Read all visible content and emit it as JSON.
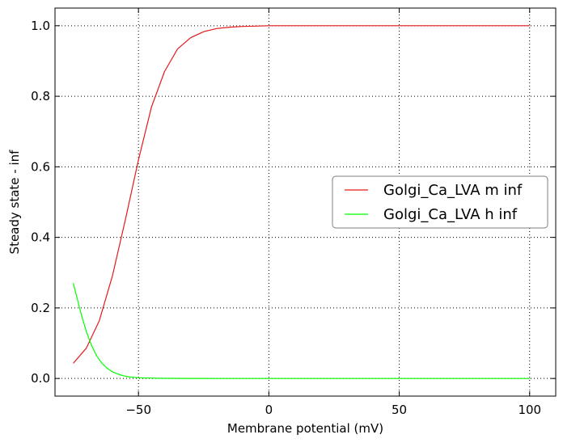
{
  "chart_data": {
    "type": "line",
    "title": "",
    "xlabel": "Membrane potential (mV)",
    "ylabel": "Steady state - inf",
    "xlim": [
      -82,
      110
    ],
    "ylim": [
      -0.05,
      1.05
    ],
    "xticks": [
      -50,
      0,
      50,
      100
    ],
    "xtick_labels": [
      "−50",
      "0",
      "50",
      "100"
    ],
    "yticks": [
      0.0,
      0.2,
      0.4,
      0.6,
      0.8,
      1.0
    ],
    "ytick_labels": [
      "0.0",
      "0.2",
      "0.4",
      "0.6",
      "0.8",
      "1.0"
    ],
    "grid": true,
    "legend_position": "center-right",
    "series": [
      {
        "name": "Golgi_Ca_LVA m inf",
        "color": "#e31a1c",
        "x": [
          -75,
          -70,
          -65,
          -60,
          -55,
          -50,
          -45,
          -40,
          -35,
          -30,
          -25,
          -20,
          -15,
          -10,
          -5,
          0,
          10,
          20,
          40,
          60,
          80,
          100
        ],
        "y": [
          0.043,
          0.086,
          0.164,
          0.29,
          0.45,
          0.62,
          0.77,
          0.87,
          0.934,
          0.966,
          0.983,
          0.992,
          0.996,
          0.998,
          0.999,
          1.0,
          1.0,
          1.0,
          1.0,
          1.0,
          1.0,
          1.0
        ]
      },
      {
        "name": "Golgi_Ca_LVA h inf",
        "color": "#00ff00",
        "x": [
          -75,
          -72,
          -70,
          -68,
          -66,
          -64,
          -62,
          -60,
          -58,
          -56,
          -54,
          -52,
          -50,
          -45,
          -40,
          -30,
          -20,
          0,
          50,
          100
        ],
        "y": [
          0.27,
          0.184,
          0.133,
          0.094,
          0.064,
          0.043,
          0.029,
          0.019,
          0.013,
          0.008,
          0.005,
          0.0035,
          0.002,
          0.001,
          0.0005,
          0.0001,
          0.0,
          0.0,
          0.0,
          0.0
        ]
      }
    ]
  }
}
